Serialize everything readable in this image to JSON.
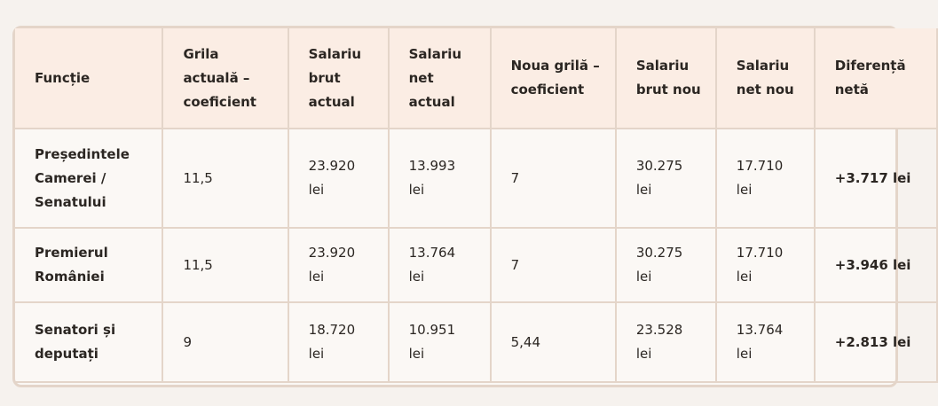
{
  "table": {
    "headers": [
      "Funcție",
      "Grila actuală – coeficient",
      "Salariu brut actual",
      "Salariu net actual",
      "Noua grilă – coeficient",
      "Salariu brut nou",
      "Salariu net nou",
      "Diferență netă"
    ],
    "rows": [
      [
        "Președintele Camerei / Senatului",
        "11,5",
        "23.920 lei",
        "13.993 lei",
        "7",
        "30.275 lei",
        "17.710 lei",
        "+3.717 lei"
      ],
      [
        "Premierul României",
        "11,5",
        "23.920 lei",
        "13.764 lei",
        "7",
        "30.275 lei",
        "17.710 lei",
        "+3.946 lei"
      ],
      [
        "Senatori și deputați",
        "9",
        "18.720 lei",
        "10.951 lei",
        "5,44",
        "23.528 lei",
        "13.764 lei",
        "+2.813 lei"
      ]
    ]
  }
}
